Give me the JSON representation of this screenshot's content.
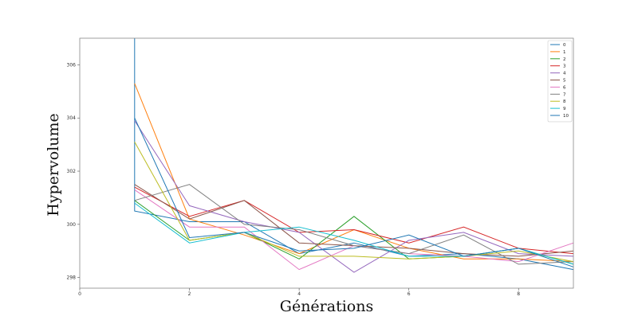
{
  "chart_data": {
    "type": "line",
    "xlabel": "Générations",
    "ylabel": "Hypervolume",
    "xlim": [
      0,
      9
    ],
    "ylim": [
      297.6,
      307.0
    ],
    "xticks": [
      0,
      2,
      4,
      6,
      8
    ],
    "yticks": [
      298,
      300,
      302,
      304,
      306
    ],
    "x": [
      1,
      2,
      3,
      4,
      5,
      6,
      7,
      8,
      9
    ],
    "grid": false,
    "legend_position": "top-right",
    "series": [
      {
        "name": "0",
        "color": "#1f77b4",
        "start": [
          1,
          307.0
        ],
        "values": [
          300.5,
          300.1,
          300.1,
          298.9,
          299.3,
          298.8,
          298.9,
          298.7,
          298.3
        ]
      },
      {
        "name": "1",
        "color": "#ff7f0e",
        "values": [
          305.3,
          300.2,
          299.6,
          298.9,
          299.8,
          299.1,
          298.7,
          298.7,
          298.6
        ]
      },
      {
        "name": "2",
        "color": "#2ca02c",
        "values": [
          300.9,
          299.4,
          299.7,
          298.7,
          300.3,
          298.7,
          298.8,
          299.1,
          298.5
        ]
      },
      {
        "name": "3",
        "color": "#d62728",
        "values": [
          301.4,
          300.3,
          300.9,
          299.7,
          299.8,
          299.3,
          299.9,
          299.1,
          298.9
        ]
      },
      {
        "name": "4",
        "color": "#9467bd",
        "values": [
          303.9,
          300.7,
          300.1,
          299.7,
          298.2,
          299.4,
          299.7,
          298.9,
          298.8
        ]
      },
      {
        "name": "5",
        "color": "#8c564b",
        "values": [
          301.5,
          300.2,
          300.9,
          299.3,
          299.2,
          299.1,
          298.9,
          298.8,
          299.0
        ]
      },
      {
        "name": "6",
        "color": "#e377c2",
        "values": [
          301.3,
          299.9,
          299.9,
          298.3,
          299.2,
          298.9,
          298.8,
          298.6,
          299.3
        ]
      },
      {
        "name": "7",
        "color": "#7f7f7f",
        "values": [
          300.9,
          301.5,
          300.0,
          299.8,
          299.2,
          298.9,
          299.6,
          298.5,
          298.6
        ]
      },
      {
        "name": "8",
        "color": "#bcbd22",
        "values": [
          303.1,
          299.4,
          299.7,
          298.8,
          298.8,
          298.7,
          298.8,
          299.0,
          298.6
        ]
      },
      {
        "name": "9",
        "color": "#17becf",
        "values": [
          300.8,
          299.3,
          299.7,
          299.9,
          299.4,
          298.8,
          298.8,
          299.1,
          298.5
        ]
      },
      {
        "name": "10",
        "color": "#1f77b4",
        "values": [
          304.0,
          299.5,
          299.7,
          299.0,
          299.1,
          299.6,
          298.8,
          299.1,
          298.4
        ]
      }
    ]
  }
}
